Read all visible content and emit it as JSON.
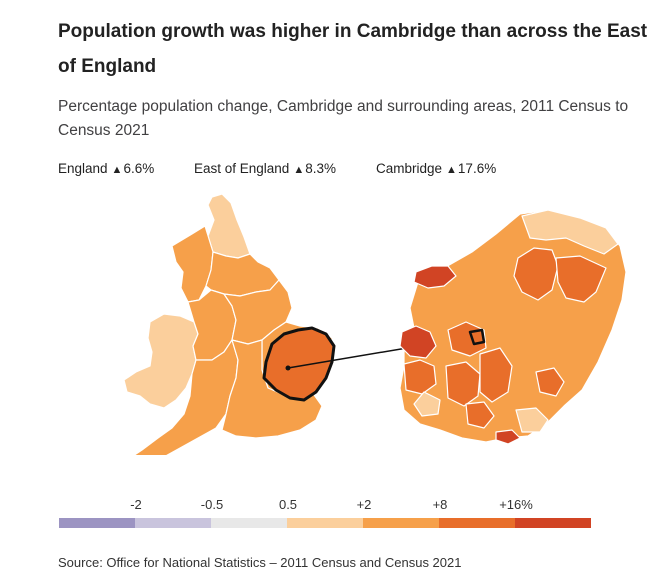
{
  "title": "Population growth was higher in Cambridge than across the East of England",
  "subtitle": "Percentage population change, Cambridge and surrounding areas, 2011 Census to Census 2021",
  "headline_figures": [
    {
      "area": "England",
      "direction": "▲",
      "value": "6.6%"
    },
    {
      "area": "East of England",
      "direction": "▲",
      "value": "8.3%"
    },
    {
      "area": "Cambridge",
      "direction": "▲",
      "value": "17.6%"
    }
  ],
  "legend": {
    "labels": [
      "-2",
      "-0.5",
      "0.5",
      "+2",
      "+8",
      "+16%"
    ],
    "swatches": [
      {
        "color": "#9c94c2"
      },
      {
        "color": "#c9c4dd"
      },
      {
        "color": "#e8e8e8"
      },
      {
        "color": "#fbcf9c"
      },
      {
        "color": "#f6a04a"
      },
      {
        "color": "#e86e2a"
      },
      {
        "color": "#d14424"
      }
    ]
  },
  "colors": {
    "decline_slight": "#e8e8e8",
    "growth_low": "#fbcf9c",
    "growth_mid": "#f6a04a",
    "growth_high": "#e86e2a",
    "growth_highest": "#d14424",
    "outline": "#111111"
  },
  "source": "Source: Office for National Statistics – 2011 Census and Census 2021"
}
